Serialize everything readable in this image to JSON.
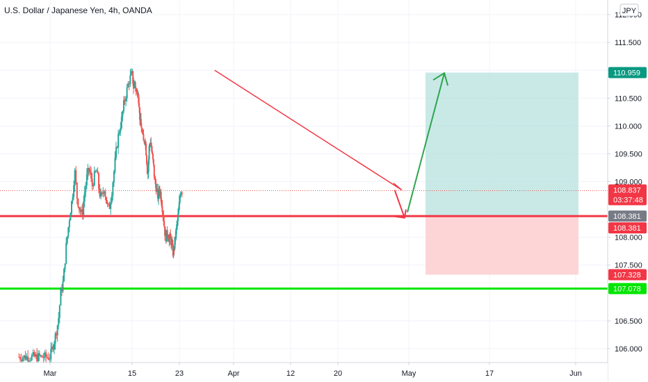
{
  "header": {
    "title": "U.S. Dollar / Japanese Yen, 4h, OANDA"
  },
  "currency_button": {
    "label": "JPY"
  },
  "chart_data": {
    "type": "candlestick",
    "symbol": "U.S. Dollar / Japanese Yen",
    "interval": "4h",
    "exchange": "OANDA",
    "currency": "JPY",
    "y_ticks": [
      "112.000",
      "111.500",
      "111.000",
      "110.500",
      "110.000",
      "109.500",
      "109.000",
      "108.000",
      "107.500",
      "106.500",
      "106.000"
    ],
    "y_tick_values": [
      112.0,
      111.5,
      111.0,
      110.5,
      110.0,
      109.5,
      109.0,
      108.0,
      107.5,
      106.5,
      106.0
    ],
    "ylim": [
      105.75,
      112.15
    ],
    "x_ticks": [
      {
        "label": "Mar",
        "index": 0
      },
      {
        "label": "15",
        "index": 1
      },
      {
        "label": "23",
        "index": 2
      },
      {
        "label": "Apr",
        "index": 3
      },
      {
        "label": "12",
        "index": 4
      },
      {
        "label": "20",
        "index": 5
      },
      {
        "label": "May",
        "index": 6
      },
      {
        "label": "17",
        "index": 7
      },
      {
        "label": "Jun",
        "index": 8
      }
    ],
    "price_path": [
      {
        "t": 0.0,
        "p": 105.85
      },
      {
        "t": 0.06,
        "p": 106.2
      },
      {
        "t": 0.1,
        "p": 106.5
      },
      {
        "t": 0.13,
        "p": 107.0
      },
      {
        "t": 0.16,
        "p": 107.2
      },
      {
        "t": 0.2,
        "p": 107.9
      },
      {
        "t": 0.24,
        "p": 108.4
      },
      {
        "t": 0.27,
        "p": 108.7
      },
      {
        "t": 0.3,
        "p": 109.2
      },
      {
        "t": 0.33,
        "p": 108.7
      },
      {
        "t": 0.36,
        "p": 108.5
      },
      {
        "t": 0.39,
        "p": 108.4
      },
      {
        "t": 0.42,
        "p": 108.8
      },
      {
        "t": 0.45,
        "p": 109.1
      },
      {
        "t": 0.48,
        "p": 109.25
      },
      {
        "t": 0.51,
        "p": 108.9
      },
      {
        "t": 0.54,
        "p": 109.1
      },
      {
        "t": 0.57,
        "p": 109.2
      },
      {
        "t": 0.6,
        "p": 108.8
      },
      {
        "t": 0.63,
        "p": 108.7
      },
      {
        "t": 0.66,
        "p": 108.9
      },
      {
        "t": 0.69,
        "p": 108.6
      },
      {
        "t": 0.72,
        "p": 108.5
      },
      {
        "t": 0.75,
        "p": 108.8
      },
      {
        "t": 0.78,
        "p": 109.2
      },
      {
        "t": 0.81,
        "p": 109.6
      },
      {
        "t": 0.84,
        "p": 109.9
      },
      {
        "t": 0.87,
        "p": 110.1
      },
      {
        "t": 0.9,
        "p": 110.4
      },
      {
        "t": 0.93,
        "p": 110.6
      },
      {
        "t": 0.96,
        "p": 110.8
      },
      {
        "t": 1.0,
        "p": 110.95
      },
      {
        "t": 1.03,
        "p": 110.7
      },
      {
        "t": 1.06,
        "p": 110.8
      },
      {
        "t": 1.09,
        "p": 110.55
      },
      {
        "t": 1.12,
        "p": 110.7
      },
      {
        "t": 1.15,
        "p": 110.3
      },
      {
        "t": 1.18,
        "p": 110.0
      },
      {
        "t": 1.21,
        "p": 109.9
      },
      {
        "t": 1.24,
        "p": 109.7
      },
      {
        "t": 1.27,
        "p": 109.8
      },
      {
        "t": 1.3,
        "p": 109.5
      },
      {
        "t": 1.33,
        "p": 109.1
      },
      {
        "t": 1.36,
        "p": 109.6
      },
      {
        "t": 1.39,
        "p": 109.75
      },
      {
        "t": 1.42,
        "p": 109.5
      },
      {
        "t": 1.45,
        "p": 109.3
      },
      {
        "t": 1.48,
        "p": 109.0
      },
      {
        "t": 1.51,
        "p": 108.9
      },
      {
        "t": 1.54,
        "p": 108.7
      },
      {
        "t": 1.57,
        "p": 108.85
      },
      {
        "t": 1.6,
        "p": 108.8
      },
      {
        "t": 1.63,
        "p": 108.6
      },
      {
        "t": 1.66,
        "p": 108.4
      },
      {
        "t": 1.69,
        "p": 108.1
      },
      {
        "t": 1.72,
        "p": 108.0
      },
      {
        "t": 1.75,
        "p": 108.1
      },
      {
        "t": 1.78,
        "p": 107.95
      },
      {
        "t": 1.81,
        "p": 108.0
      },
      {
        "t": 1.84,
        "p": 107.85
      },
      {
        "t": 1.87,
        "p": 107.7
      },
      {
        "t": 1.9,
        "p": 107.9
      },
      {
        "t": 1.93,
        "p": 108.1
      },
      {
        "t": 1.96,
        "p": 108.3
      },
      {
        "t": 1.99,
        "p": 108.5
      },
      {
        "t": 2.02,
        "p": 108.85
      },
      {
        "t": 2.05,
        "p": 108.837
      }
    ],
    "horizontal_lines": [
      {
        "name": "entry-line",
        "value": 108.381,
        "color": "#f23645"
      },
      {
        "name": "support-line",
        "value": 107.078,
        "color": "#00e600"
      }
    ],
    "position_box": {
      "entry": 108.381,
      "target": 110.959,
      "stop": 107.328,
      "profit_color": "#b2dfdb",
      "loss_color": "#fccbcd"
    },
    "trendline": {
      "from_index": 2.65,
      "from_value": 111.0,
      "to_index": 5.9,
      "to_value": 108.85,
      "color": "#f23645"
    },
    "price_tags": [
      {
        "name": "target-tag",
        "text": "110.959",
        "value": 110.959,
        "color": "#089981"
      },
      {
        "name": "last-price-tag",
        "text": "108.837",
        "subtext": "03:37:48",
        "value": 108.837,
        "color": "#f23645"
      },
      {
        "name": "entry-tag-gray",
        "text": "108.381",
        "value": 108.381,
        "color": "#787b86"
      },
      {
        "name": "entry-tag-red",
        "text": "108.381",
        "value": 108.381,
        "color": "#f23645"
      },
      {
        "name": "stop-tag",
        "text": "107.328",
        "value": 107.328,
        "color": "#f23645"
      },
      {
        "name": "support-tag",
        "text": "107.078",
        "value": 107.078,
        "color": "#00e600"
      }
    ],
    "last_price": 108.837,
    "countdown": "03:37:48",
    "up_color": "#26a69a",
    "down_color": "#ef5350",
    "grid": true
  }
}
